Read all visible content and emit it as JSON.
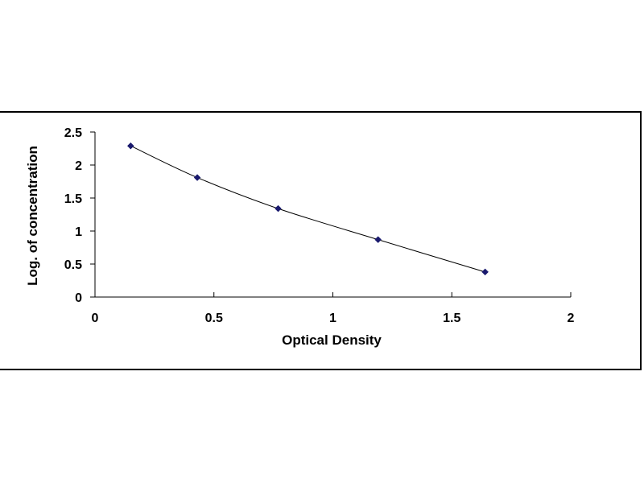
{
  "chart_data": {
    "type": "scatter",
    "title": "",
    "xlabel": "Optical Density",
    "ylabel": "Log. of concentration",
    "xlim": [
      0,
      2
    ],
    "ylim": [
      0,
      2.5
    ],
    "x_ticks": [
      "0",
      "0.5",
      "1",
      "1.5",
      "2"
    ],
    "y_ticks": [
      "0",
      "0.5",
      "1",
      "1.5",
      "2",
      "2.5"
    ],
    "grid": false,
    "legend": "none",
    "series": [
      {
        "marker": "diamond",
        "line": "smooth",
        "color": "#1a1a6e",
        "x": [
          0.15,
          0.43,
          0.77,
          1.19,
          1.64
        ],
        "y": [
          2.29,
          1.81,
          1.34,
          0.87,
          0.38
        ]
      }
    ]
  }
}
